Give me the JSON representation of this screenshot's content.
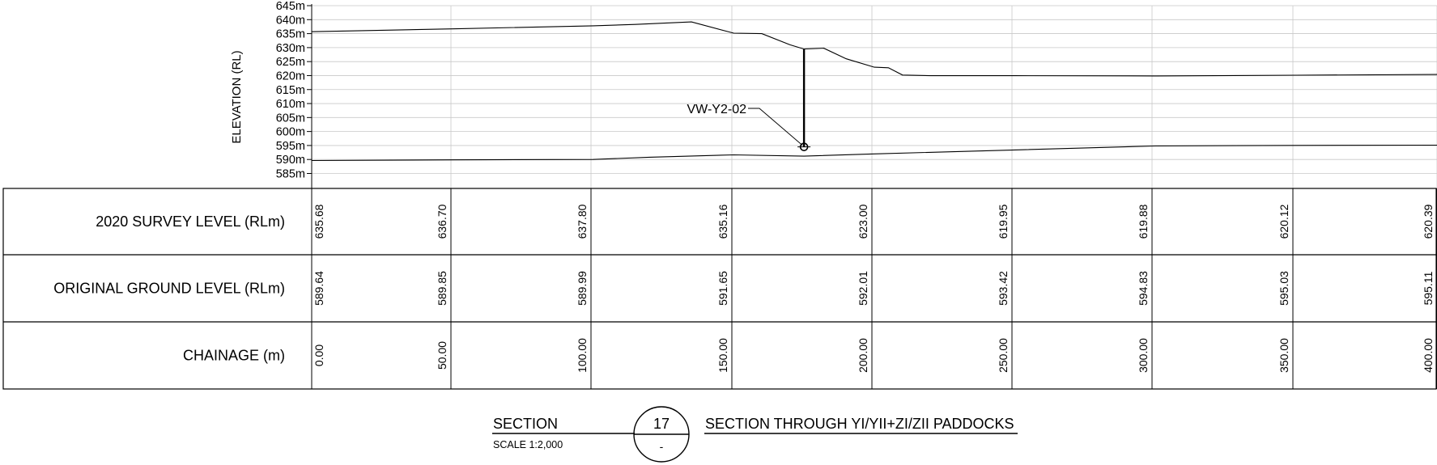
{
  "chart_data": {
    "type": "line",
    "ylabel": "ELEVATION (RL)",
    "ylim": [
      585,
      645
    ],
    "y_ticks": [
      "645m",
      "640m",
      "635m",
      "630m",
      "625m",
      "620m",
      "615m",
      "610m",
      "605m",
      "600m",
      "595m",
      "590m",
      "585m"
    ],
    "xlim": [
      0,
      400
    ],
    "series": [
      {
        "name": "2020 SURVEY LEVEL (RLm)",
        "x": [
          0,
          50,
          100,
          115,
          135,
          150,
          160,
          170,
          175,
          182,
          190,
          200,
          205,
          210,
          220,
          250,
          300,
          350,
          400
        ],
        "y": [
          635.7,
          636.7,
          637.8,
          638.3,
          639.2,
          635.16,
          635.0,
          631.0,
          629.5,
          629.8,
          626.0,
          623.0,
          622.8,
          620.2,
          619.95,
          619.95,
          619.88,
          620.12,
          620.39
        ]
      },
      {
        "name": "ORIGINAL GROUND LEVEL (RLm)",
        "x": [
          0,
          50,
          100,
          120,
          150,
          175,
          200,
          250,
          300,
          350,
          400
        ],
        "y": [
          589.64,
          589.85,
          589.99,
          590.8,
          591.65,
          591.2,
          592.01,
          593.42,
          594.83,
          595.03,
          595.11
        ]
      }
    ],
    "annotations": [
      {
        "text": "VW-Y2-02",
        "x": 175,
        "top": 629.5,
        "bottom": 594.5
      }
    ]
  },
  "table": {
    "rows": [
      {
        "label": "2020 SURVEY LEVEL (RLm)",
        "values": [
          "635.68",
          "636.70",
          "637.80",
          "635.16",
          "623.00",
          "619.95",
          "619.88",
          "620.12",
          "620.39"
        ]
      },
      {
        "label": "ORIGINAL GROUND LEVEL (RLm)",
        "values": [
          "589.64",
          "589.85",
          "589.99",
          "591.65",
          "592.01",
          "593.42",
          "594.83",
          "595.03",
          "595.11"
        ]
      },
      {
        "label": "CHAINAGE (m)",
        "values": [
          "0.00",
          "50.00",
          "100.00",
          "150.00",
          "200.00",
          "250.00",
          "300.00",
          "350.00",
          "400.00"
        ]
      }
    ]
  },
  "title_block": {
    "section_label": "SECTION",
    "scale": "SCALE 1:2,000",
    "number": "17",
    "sheet": "-",
    "title": "SECTION THROUGH YI/YII+ZI/ZII PADDOCKS"
  }
}
